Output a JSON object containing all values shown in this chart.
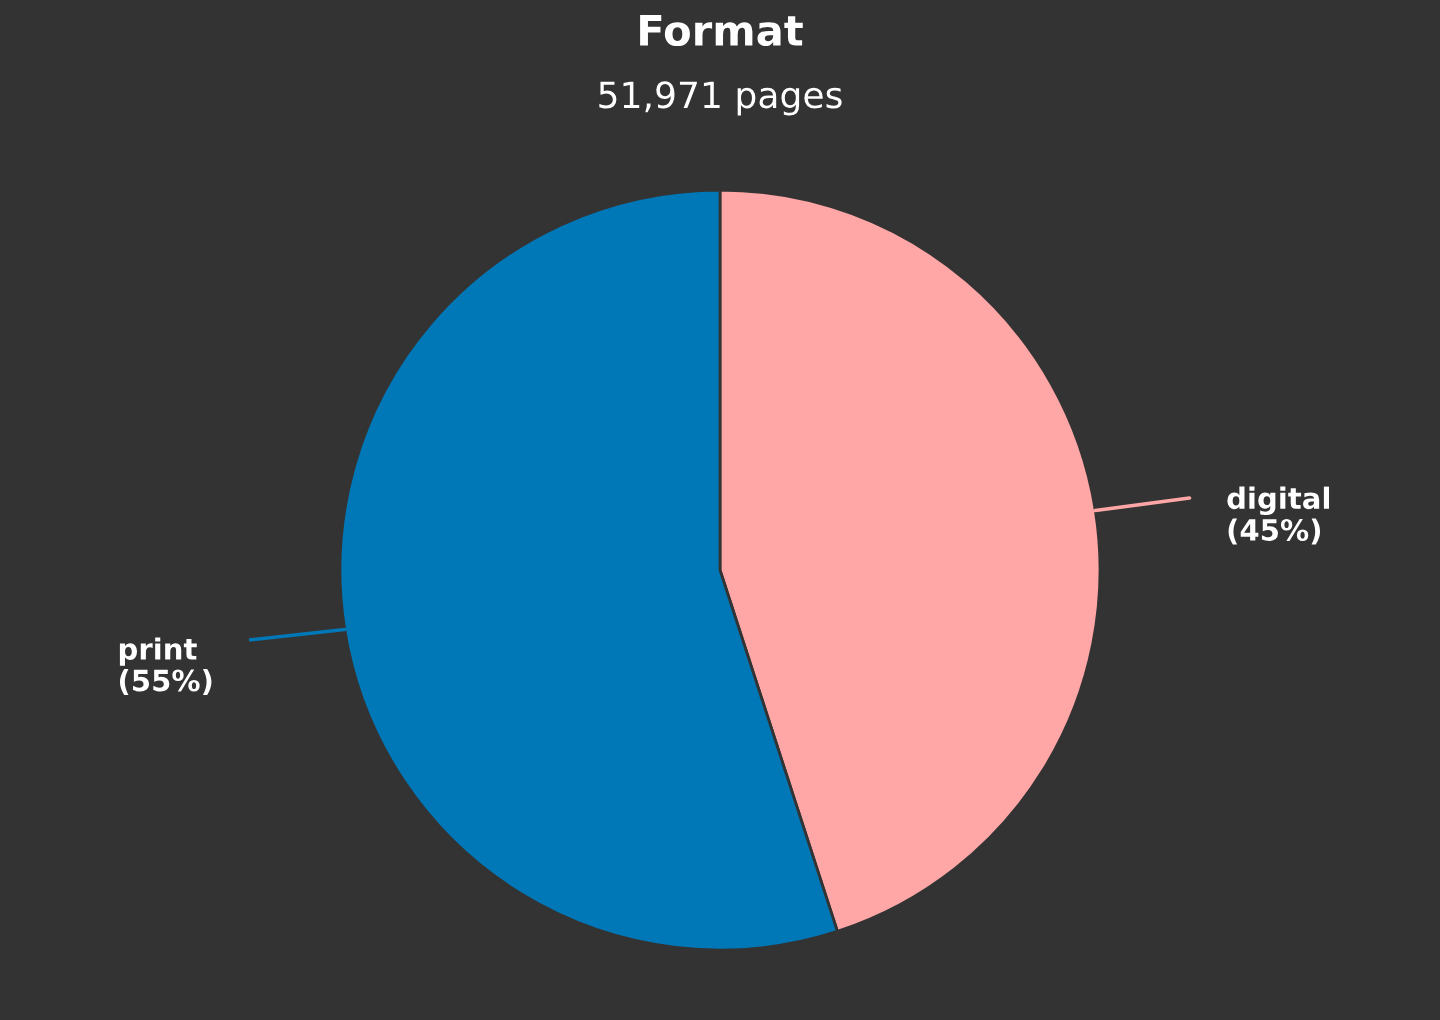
{
  "chart_data": {
    "type": "pie",
    "title": "Format",
    "subtitle": "51,971 pages",
    "categories": [
      "digital",
      "print"
    ],
    "values": [
      45,
      55
    ],
    "colors": [
      "#ffa6a6",
      "#0077b6"
    ],
    "value_labels": [
      "(45%)",
      "(55%)"
    ]
  }
}
